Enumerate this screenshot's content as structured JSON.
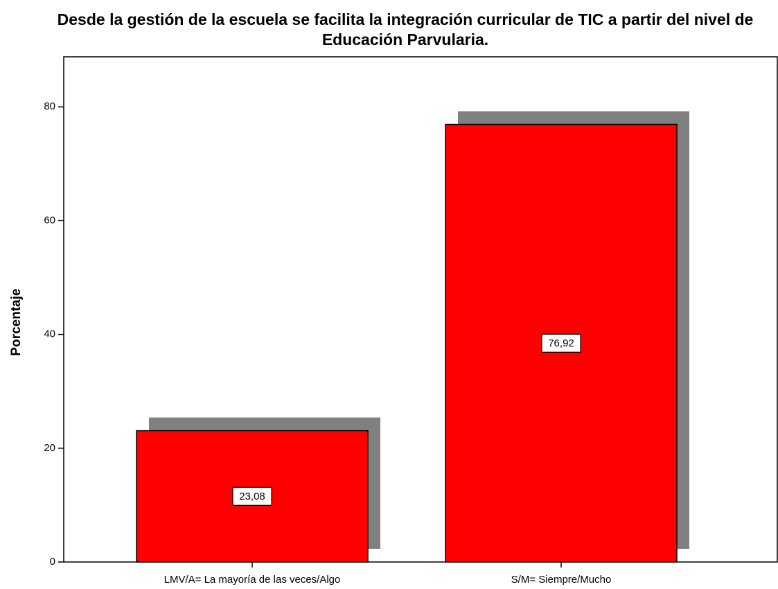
{
  "chart_data": {
    "type": "bar",
    "title": "Desde la gestión de la escuela se facilita la integración curricular de TIC a partir del nivel de Educación Parvularia.",
    "ylabel": "Porcentaje",
    "categories": [
      "LMV/A= La mayoría de las veces/Algo",
      "S/M= Siempre/Mucho"
    ],
    "values": [
      23.08,
      76.92
    ],
    "value_labels": [
      "23,08",
      "76,92"
    ],
    "color": "#ff0000",
    "shadow_color": "#808080",
    "ylim": [
      0,
      88.8
    ],
    "yticks": [
      0,
      20,
      40,
      60,
      80
    ],
    "grid": false
  }
}
